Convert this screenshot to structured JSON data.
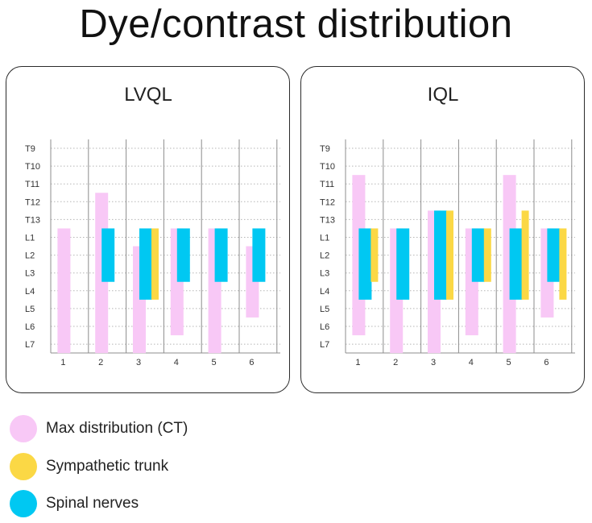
{
  "title": "Dye/contrast distribution",
  "chart_data": {
    "type": "bar",
    "y_levels": [
      "T9",
      "T10",
      "T11",
      "T12",
      "T13",
      "L1",
      "L2",
      "L3",
      "L4",
      "L5",
      "L6",
      "L7"
    ],
    "colors": {
      "max_ct": "#f8c8f6",
      "sympathetic": "#fbd845",
      "spinal": "#00c8f2"
    },
    "panels": [
      {
        "title": "LVQL",
        "categories": [
          "1",
          "2",
          "3",
          "4",
          "5",
          "6"
        ],
        "series": [
          {
            "name": "Max distribution (CT)",
            "key": "max_ct",
            "ranges": [
              [
                "L1",
                "L7"
              ],
              [
                "T12",
                "L7"
              ],
              [
                "L2",
                "L7"
              ],
              [
                "L1",
                "L6"
              ],
              [
                "L1",
                "L7"
              ],
              [
                "L2",
                "L5"
              ]
            ]
          },
          {
            "name": "Spinal nerves",
            "key": "spinal",
            "ranges": [
              null,
              [
                "L1",
                "L3"
              ],
              [
                "L1",
                "L4"
              ],
              [
                "L1",
                "L3"
              ],
              [
                "L1",
                "L3"
              ],
              [
                "L1",
                "L3"
              ]
            ]
          },
          {
            "name": "Sympathetic trunk",
            "key": "sympathetic",
            "ranges": [
              null,
              null,
              [
                "L1",
                "L4"
              ],
              null,
              null,
              null
            ]
          }
        ]
      },
      {
        "title": "IQL",
        "categories": [
          "1",
          "2",
          "3",
          "4",
          "5",
          "6"
        ],
        "series": [
          {
            "name": "Max distribution (CT)",
            "key": "max_ct",
            "ranges": [
              [
                "T11",
                "L6"
              ],
              [
                "L1",
                "L7"
              ],
              [
                "T13",
                "L7"
              ],
              [
                "L1",
                "L6"
              ],
              [
                "T11",
                "L7"
              ],
              [
                "L1",
                "L5"
              ]
            ]
          },
          {
            "name": "Spinal nerves",
            "key": "spinal",
            "ranges": [
              [
                "L1",
                "L4"
              ],
              [
                "L1",
                "L4"
              ],
              [
                "T13",
                "L4"
              ],
              [
                "L1",
                "L3"
              ],
              [
                "L1",
                "L4"
              ],
              [
                "L1",
                "L3"
              ]
            ]
          },
          {
            "name": "Sympathetic trunk",
            "key": "sympathetic",
            "ranges": [
              [
                "L1",
                "L3"
              ],
              null,
              [
                "T13",
                "L4"
              ],
              [
                "L1",
                "L3"
              ],
              [
                "T13",
                "L4"
              ],
              [
                "L1",
                "L4"
              ]
            ]
          }
        ]
      }
    ]
  },
  "legend": [
    {
      "label": "Max distribution (CT)",
      "color": "#f8c8f6"
    },
    {
      "label": "Sympathetic trunk",
      "color": "#fbd845"
    },
    {
      "label": "Spinal nerves",
      "color": "#00c8f2"
    }
  ]
}
